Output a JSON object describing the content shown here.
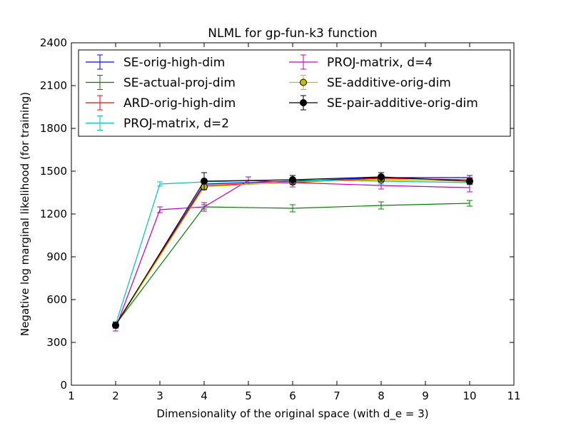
{
  "chart_data": {
    "type": "line",
    "title": "NLML for gp-fun-k3 function",
    "xlabel": "Dimensionality of the original space (with d_e = 3)",
    "ylabel": "Negative log marginal likelihood (for training)",
    "xlim": [
      1,
      11
    ],
    "ylim": [
      0,
      2400
    ],
    "xticks": [
      "1",
      "2",
      "3",
      "4",
      "5",
      "6",
      "7",
      "8",
      "9",
      "10",
      "11"
    ],
    "yticks": [
      "0",
      "300",
      "600",
      "900",
      "1200",
      "1500",
      "1800",
      "2100",
      "2400"
    ],
    "grid": false,
    "legend_position": "top",
    "legend_columns": 2,
    "series": [
      {
        "name": "SE-orig-high-dim",
        "color": "#0000ff",
        "marker": "none",
        "x": [
          2,
          4,
          6,
          8,
          10
        ],
        "y": [
          425,
          1410,
          1430,
          1455,
          1455
        ],
        "err": [
          20,
          15,
          15,
          15,
          15
        ]
      },
      {
        "name": "SE-actual-proj-dim",
        "color": "#008000",
        "marker": "none",
        "x": [
          2,
          4,
          6,
          8,
          10
        ],
        "y": [
          425,
          1250,
          1240,
          1260,
          1275
        ],
        "err": [
          20,
          15,
          25,
          25,
          20
        ]
      },
      {
        "name": "ARD-orig-high-dim",
        "color": "#ff0000",
        "marker": "none",
        "x": [
          2,
          4,
          6,
          8,
          10
        ],
        "y": [
          425,
          1400,
          1420,
          1450,
          1440
        ],
        "err": [
          20,
          15,
          15,
          20,
          15
        ]
      },
      {
        "name": "PROJ-matrix, d=2",
        "color": "#00bfbf",
        "marker": "none",
        "x": [
          2,
          3,
          4,
          6,
          8,
          10
        ],
        "y": [
          425,
          1410,
          1425,
          1440,
          1430,
          1420
        ],
        "err": [
          20,
          15,
          15,
          15,
          20,
          15
        ]
      },
      {
        "name": "PROJ-matrix, d=4",
        "color": "#bf00bf",
        "marker": "none",
        "x": [
          2,
          3,
          4,
          5,
          6,
          8,
          10
        ],
        "y": [
          400,
          1230,
          1250,
          1435,
          1420,
          1400,
          1385
        ],
        "err": [
          20,
          20,
          30,
          25,
          30,
          25,
          30
        ]
      },
      {
        "name": "SE-additive-orig-dim",
        "color": "#bfbf00",
        "marker": "circle",
        "x": [
          2,
          4,
          6,
          8,
          10
        ],
        "y": [
          420,
          1390,
          1425,
          1440,
          1430
        ],
        "err": [
          20,
          20,
          20,
          20,
          20
        ]
      },
      {
        "name": "SE-pair-additive-orig-dim",
        "color": "#000000",
        "marker": "circle",
        "x": [
          2,
          4,
          6,
          8,
          10
        ],
        "y": [
          420,
          1430,
          1440,
          1460,
          1430
        ],
        "err": [
          20,
          60,
          30,
          30,
          20
        ]
      }
    ]
  }
}
